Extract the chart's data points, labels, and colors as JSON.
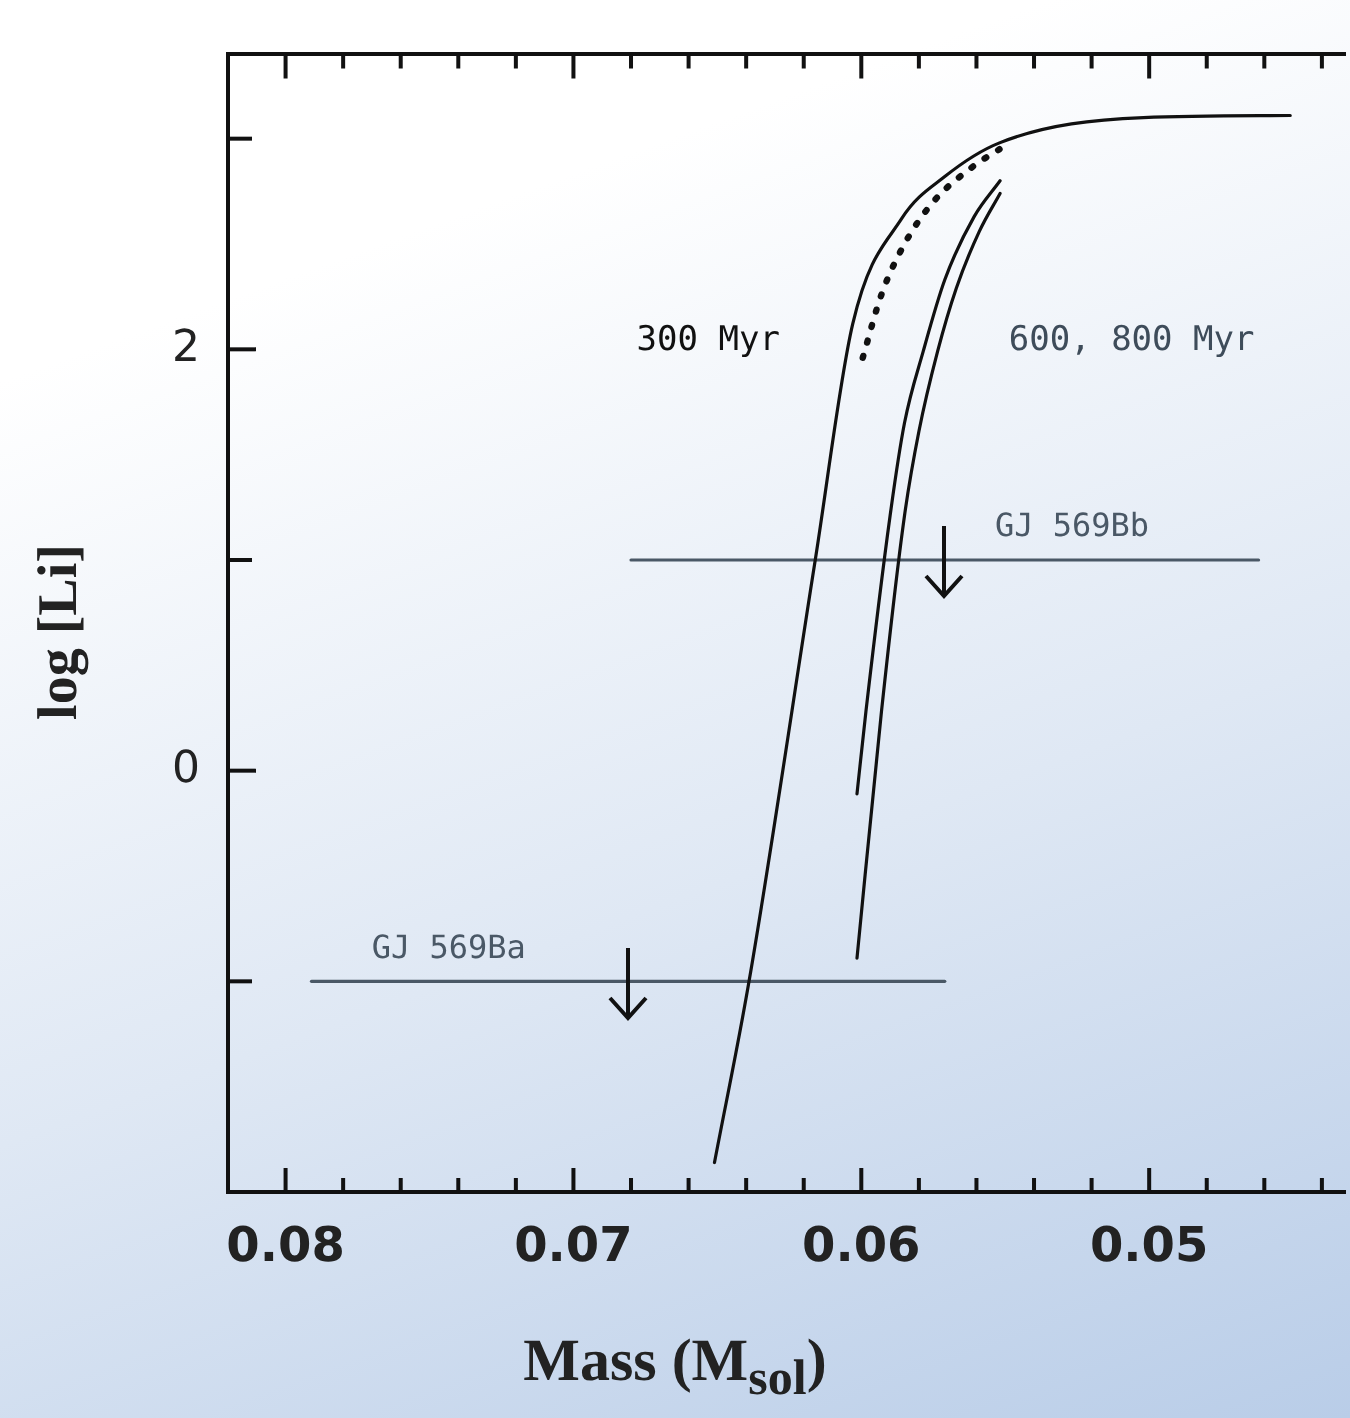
{
  "chart_data": {
    "type": "line",
    "xlabel": "Mass (M$_{sol}$)",
    "ylabel": "log [Li]",
    "xlim": [
      0.082,
      0.0432
    ],
    "ylim": [
      -2,
      3.4
    ],
    "xticks": [
      0.08,
      {
        "value": 0.078,
        "label": null
      },
      {
        "value": 0.076,
        "label": null
      },
      {
        "value": 0.074,
        "label": null
      },
      {
        "value": 0.072,
        "label": null
      },
      0.07,
      {
        "value": 0.068,
        "label": null
      },
      {
        "value": 0.066,
        "label": null
      },
      {
        "value": 0.064,
        "label": null
      },
      {
        "value": 0.062,
        "label": null
      },
      0.06,
      {
        "value": 0.058,
        "label": null
      },
      {
        "value": 0.056,
        "label": null
      },
      {
        "value": 0.054,
        "label": null
      },
      {
        "value": 0.052,
        "label": null
      },
      0.05,
      {
        "value": 0.048,
        "label": null
      },
      {
        "value": 0.046,
        "label": null
      },
      {
        "value": 0.044,
        "label": null
      }
    ],
    "yticks": [
      {
        "value": -1,
        "label": null
      },
      0,
      {
        "value": 1,
        "label": null
      },
      2,
      {
        "value": 3,
        "label": null
      }
    ],
    "series": [
      {
        "color": "#111111",
        "line_style": "solid",
        "x": [
          0.0651,
          0.0639,
          0.0616,
          0.0603,
          0.0586,
          0.0571,
          0.0552,
          0.0502,
          0.0451
        ],
        "values": [
          -1.86,
          -1,
          1,
          2.12,
          2.62,
          2.82,
          2.98,
          3.1,
          3.11
        ]
      },
      {
        "color": "#111111",
        "line_style": "dotted",
        "x": [
          0.05995,
          0.0593,
          0.0585,
          0.0575,
          0.0561,
          0.0552
        ],
        "values": [
          1.96,
          2.26,
          2.5,
          2.7,
          2.87,
          2.95
        ]
      },
      {
        "color": "#111111",
        "line_style": "solid",
        "x": [
          0.06015,
          0.05984,
          0.059,
          0.0585,
          0.05785,
          0.0571,
          0.05608,
          0.05518
        ],
        "values": [
          -0.11,
          0.28,
          1.21,
          1.65,
          1.99,
          2.33,
          2.63,
          2.8
        ]
      },
      {
        "color": "#111111",
        "line_style": "solid",
        "x": [
          0.06015,
          0.0593,
          0.0585,
          0.058,
          0.05735,
          0.0567,
          0.0559,
          0.05518
        ],
        "values": [
          -0.89,
          0.28,
          1.21,
          1.61,
          1.99,
          2.29,
          2.56,
          2.74
        ]
      },
      {
        "name": "GJ 569Bb",
        "color": "#4a5866",
        "line_style": "solid",
        "x": [
          0.068,
          0.0462
        ],
        "values": [
          1,
          1
        ]
      },
      {
        "name": "GJ 569Ba",
        "color": "#4a5866",
        "line_style": "solid",
        "x": [
          0.0791,
          0.0571
        ],
        "values": [
          -1,
          -1
        ]
      }
    ],
    "annotations": [
      "300 Myr",
      "600, 800 Myr"
    ],
    "grid": false,
    "legend": false,
    "marker": "none"
  }
}
